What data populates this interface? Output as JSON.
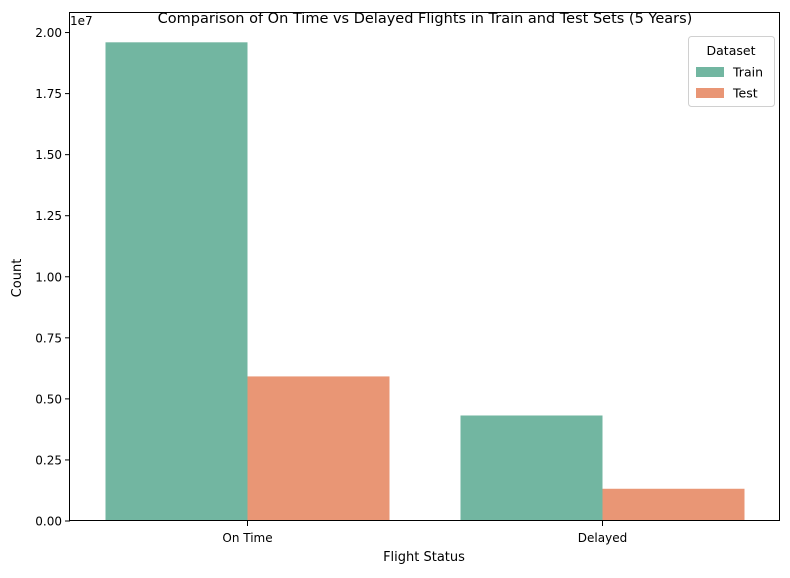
{
  "chart_data": {
    "type": "bar",
    "title": "Comparison of On Time vs Delayed Flights in Train and Test Sets (5 Years)",
    "xlabel": "Flight Status",
    "ylabel": "Count",
    "y_offset_label": "1e7",
    "categories": [
      "On Time",
      "Delayed"
    ],
    "series": [
      {
        "name": "Train",
        "color": "#72b6a1",
        "values": [
          19600000,
          4320000
        ]
      },
      {
        "name": "Test",
        "color": "#e99675",
        "values": [
          5920000,
          1320000
        ]
      }
    ],
    "ylim": [
      0,
      20800000
    ],
    "yticks": [
      0,
      2500000,
      5000000,
      7500000,
      10000000,
      12500000,
      15000000,
      17500000,
      20000000
    ],
    "ytick_labels": [
      "0.00",
      "0.25",
      "0.50",
      "0.75",
      "1.00",
      "1.25",
      "1.50",
      "1.75",
      "2.00"
    ],
    "grid": false,
    "legend": {
      "title": "Dataset",
      "placement": "top-right"
    }
  }
}
